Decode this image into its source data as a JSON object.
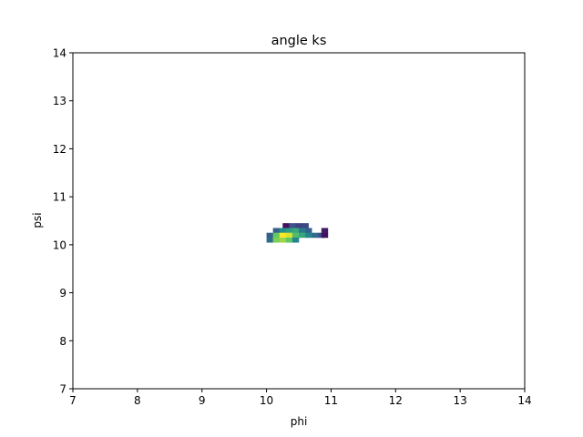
{
  "chart_data": {
    "type": "heatmap",
    "title": "angle ks",
    "xlabel": "phi",
    "ylabel": "psi",
    "xlim": [
      7,
      14
    ],
    "ylim": [
      7,
      14
    ],
    "xticks": [
      "7",
      "8",
      "9",
      "10",
      "11",
      "12",
      "13",
      "14"
    ],
    "yticks": [
      "7",
      "8",
      "9",
      "10",
      "11",
      "12",
      "13",
      "14"
    ],
    "grid": false,
    "colormap": "viridis",
    "bin_size": 0.1,
    "cells": [
      {
        "x": 10.3,
        "y": 10.4,
        "v": 0.05
      },
      {
        "x": 10.4,
        "y": 10.4,
        "v": 0.25
      },
      {
        "x": 10.5,
        "y": 10.4,
        "v": 0.2
      },
      {
        "x": 10.6,
        "y": 10.4,
        "v": 0.22
      },
      {
        "x": 10.15,
        "y": 10.3,
        "v": 0.3
      },
      {
        "x": 10.25,
        "y": 10.3,
        "v": 0.5
      },
      {
        "x": 10.35,
        "y": 10.3,
        "v": 0.55
      },
      {
        "x": 10.45,
        "y": 10.3,
        "v": 0.6
      },
      {
        "x": 10.55,
        "y": 10.3,
        "v": 0.4
      },
      {
        "x": 10.65,
        "y": 10.3,
        "v": 0.3
      },
      {
        "x": 10.9,
        "y": 10.3,
        "v": 0.08
      },
      {
        "x": 10.05,
        "y": 10.2,
        "v": 0.3
      },
      {
        "x": 10.15,
        "y": 10.2,
        "v": 0.75
      },
      {
        "x": 10.25,
        "y": 10.2,
        "v": 1.0
      },
      {
        "x": 10.35,
        "y": 10.2,
        "v": 0.95
      },
      {
        "x": 10.45,
        "y": 10.2,
        "v": 0.7
      },
      {
        "x": 10.55,
        "y": 10.2,
        "v": 0.6
      },
      {
        "x": 10.65,
        "y": 10.2,
        "v": 0.45
      },
      {
        "x": 10.75,
        "y": 10.2,
        "v": 0.35
      },
      {
        "x": 10.85,
        "y": 10.2,
        "v": 0.25
      },
      {
        "x": 10.9,
        "y": 10.2,
        "v": 0.05
      },
      {
        "x": 10.05,
        "y": 10.1,
        "v": 0.35
      },
      {
        "x": 10.15,
        "y": 10.1,
        "v": 0.8
      },
      {
        "x": 10.25,
        "y": 10.1,
        "v": 0.85
      },
      {
        "x": 10.35,
        "y": 10.1,
        "v": 0.75
      },
      {
        "x": 10.45,
        "y": 10.1,
        "v": 0.45
      }
    ]
  }
}
